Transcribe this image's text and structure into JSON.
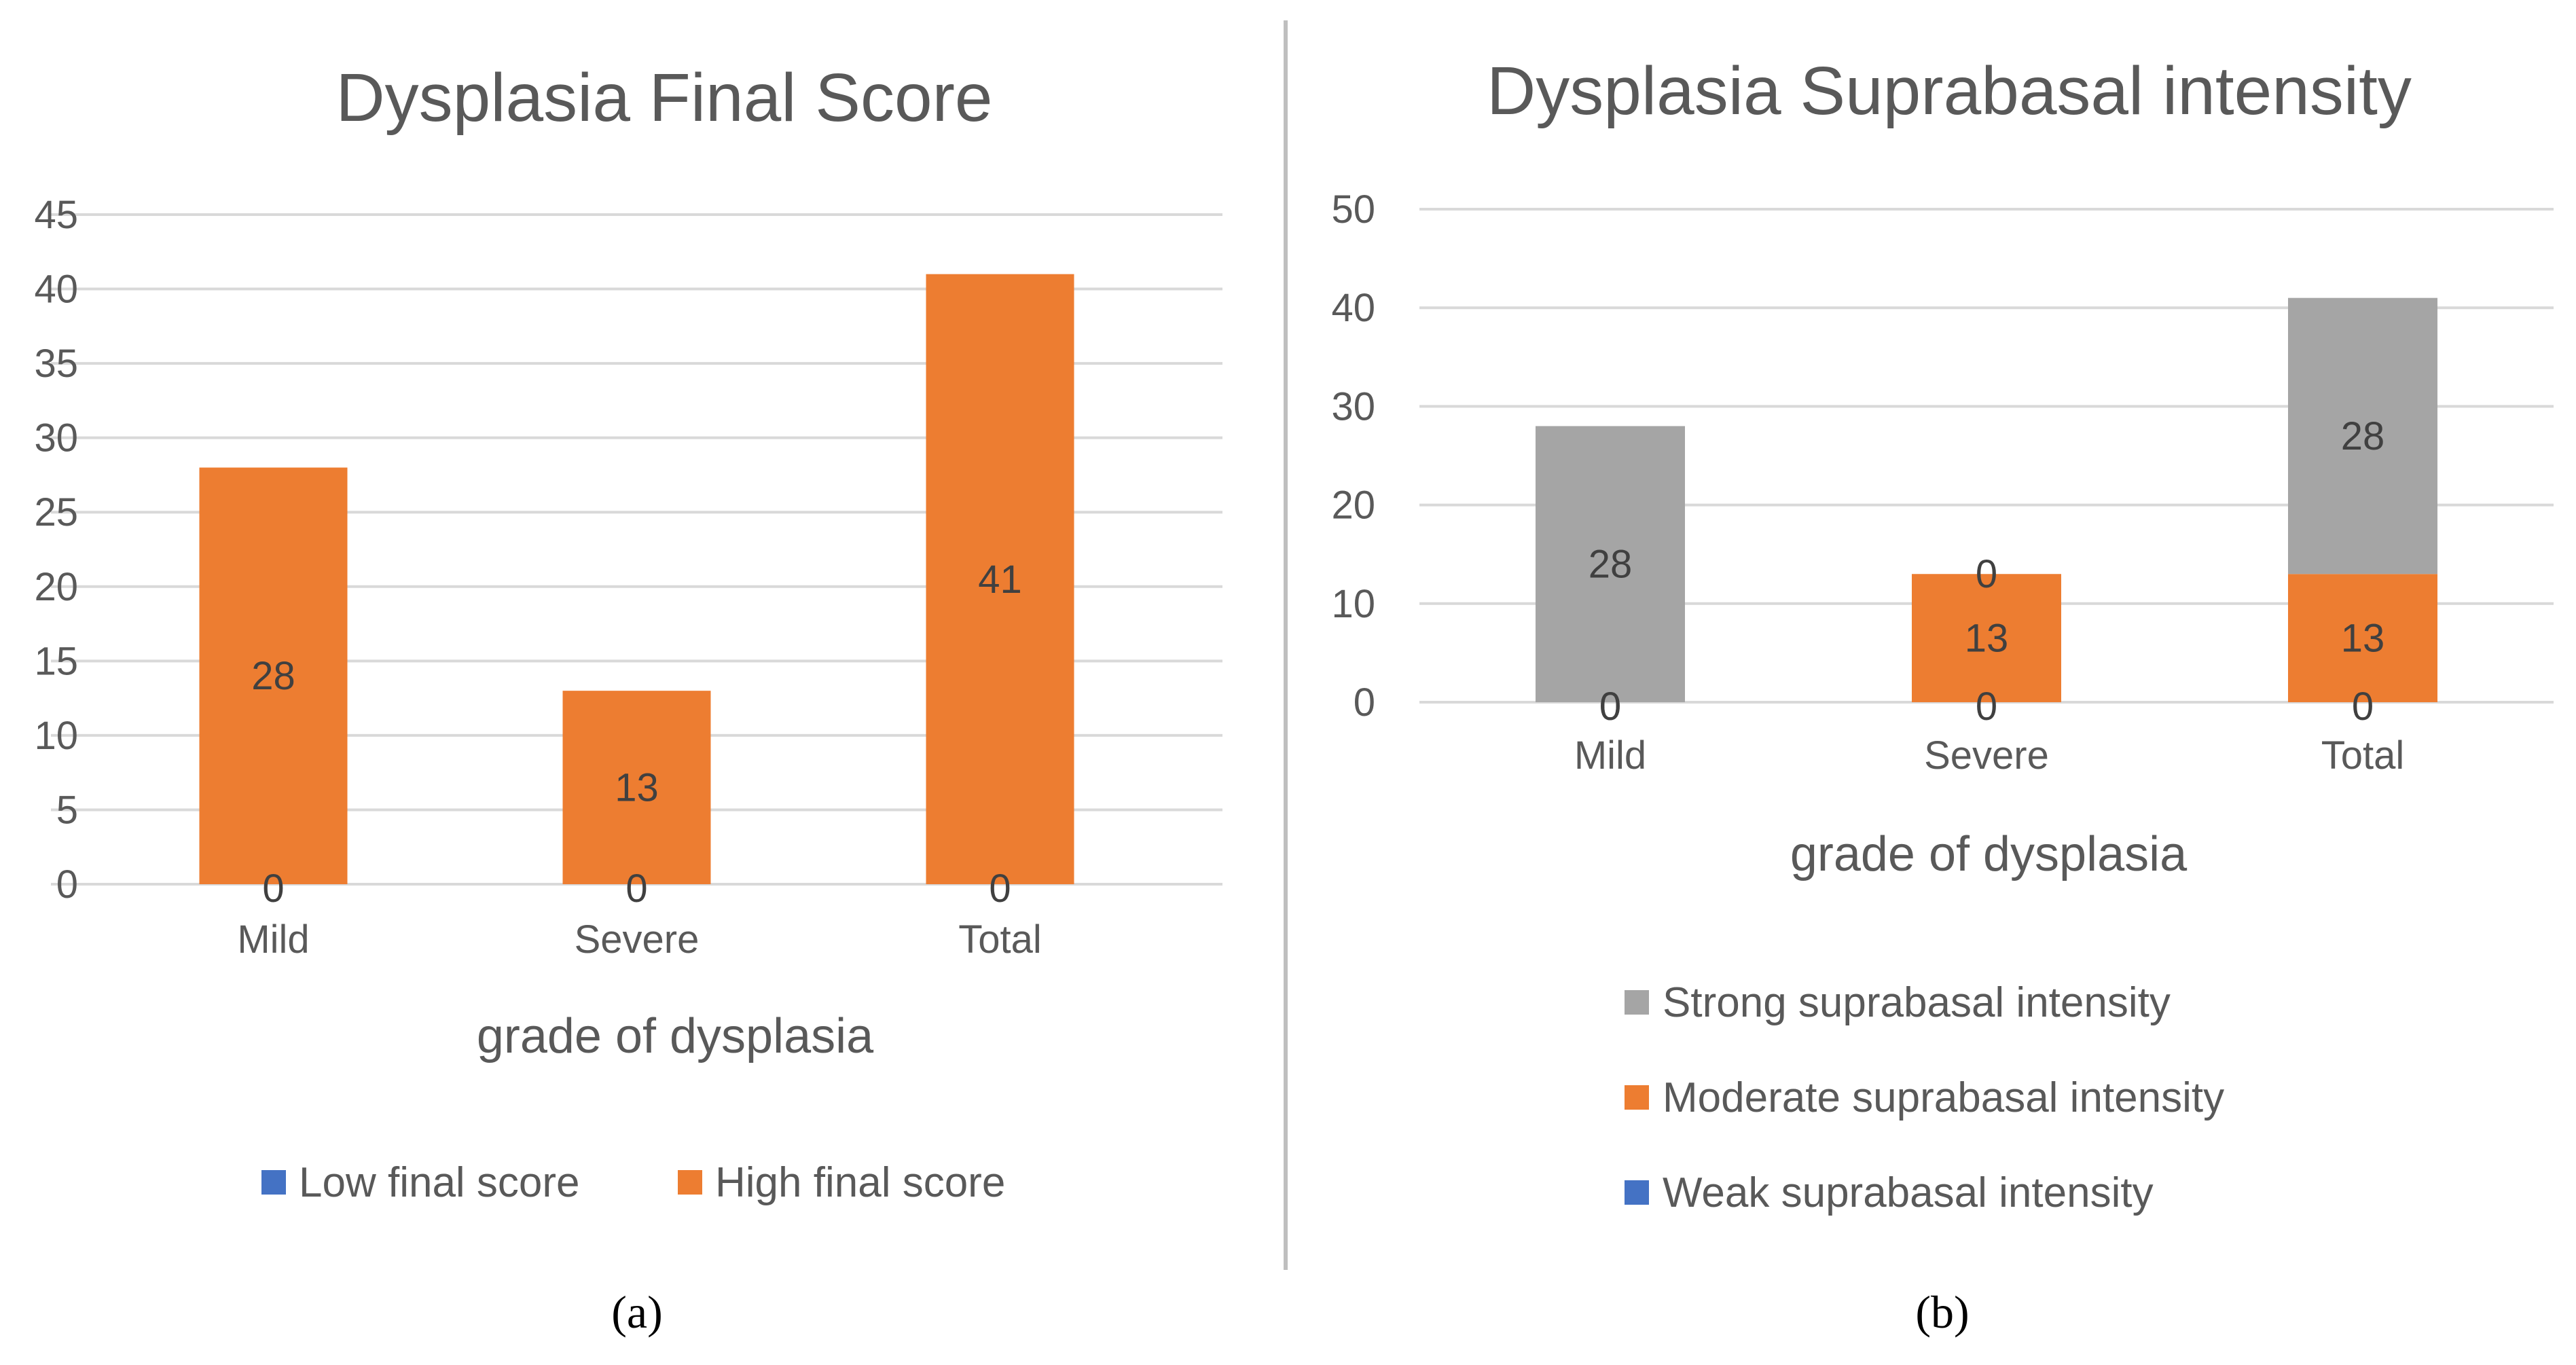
{
  "colors": {
    "weak_blue": "#4472C4",
    "orange": "#ED7D31",
    "gray": "#A5A5A5",
    "grid": "#D9D9D9",
    "divider": "#BFBFBF"
  },
  "chart_data": [
    {
      "type": "bar",
      "panel_label": "(a)",
      "title": "Dysplasia Final Score",
      "xlabel": "grade of dysplasia",
      "ylabel": "",
      "categories": [
        "Mild",
        "Severe",
        "Total"
      ],
      "ylim": [
        0,
        45
      ],
      "yticks": [
        0,
        5,
        10,
        15,
        20,
        25,
        30,
        35,
        40,
        45
      ],
      "grid": true,
      "stacked": true,
      "legend_position": "bottom",
      "series": [
        {
          "name": "Low final score",
          "values": [
            0,
            0,
            0
          ],
          "color": "#4472C4",
          "data_labels": [
            "0",
            "0",
            "0"
          ]
        },
        {
          "name": "High final score",
          "values": [
            28,
            13,
            41
          ],
          "color": "#ED7D31",
          "data_labels": [
            "28",
            "13",
            "41"
          ]
        }
      ]
    },
    {
      "type": "bar",
      "panel_label": "(b)",
      "title": "Dysplasia Suprabasal intensity",
      "xlabel": "grade of dysplasia",
      "ylabel": "",
      "categories": [
        "Mild",
        "Severe",
        "Total"
      ],
      "ylim": [
        0,
        50
      ],
      "yticks": [
        0,
        10,
        20,
        30,
        40,
        50
      ],
      "grid": true,
      "stacked": true,
      "legend_position": "bottom",
      "series": [
        {
          "name": "Weak suprabasal intensity",
          "values": [
            0,
            0,
            0
          ],
          "color": "#4472C4",
          "data_labels": [
            "0",
            "0",
            "0"
          ]
        },
        {
          "name": "Moderate suprabasal intensity",
          "values": [
            0,
            13,
            13
          ],
          "color": "#ED7D31",
          "data_labels": [
            "0",
            "13",
            "13"
          ]
        },
        {
          "name": "Strong suprabasal intensity",
          "values": [
            28,
            0,
            28
          ],
          "color": "#A5A5A5",
          "data_labels": [
            "28",
            "0",
            "28"
          ]
        }
      ]
    }
  ]
}
